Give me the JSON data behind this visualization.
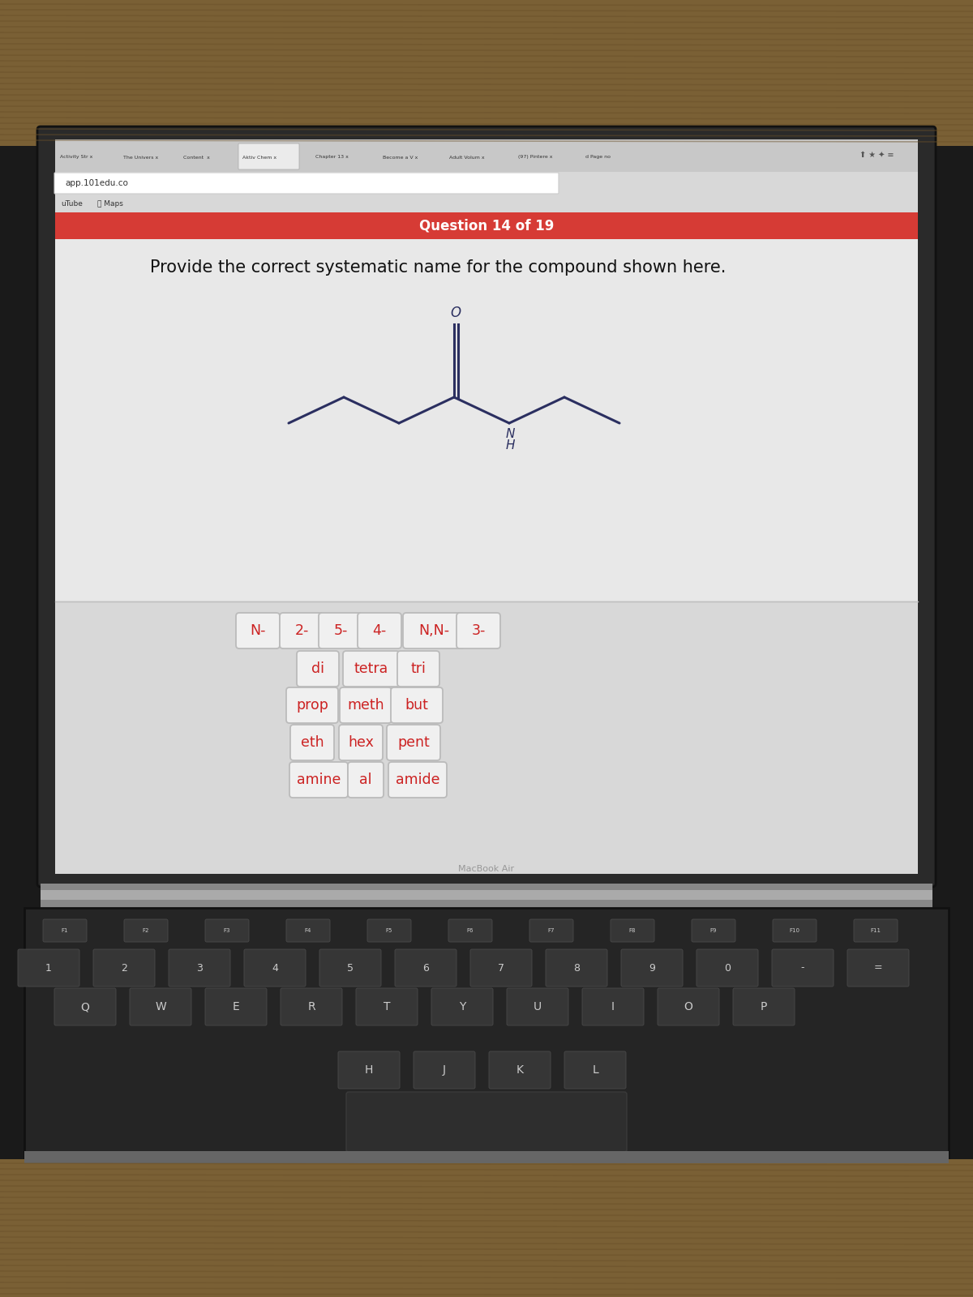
{
  "macbook_frame_color": "#2a2a2a",
  "screen_bg": "#e5e5e5",
  "browser_tabs_bg": "#c8c8c8",
  "active_tab_bg": "#ebebeb",
  "address_bar_bg": "#d8d8d8",
  "address_bar_box": "#ffffff",
  "bookmarks_bg": "#d8d8d8",
  "question_bar_color": "#d63b35",
  "question_text": "Question 14 of 19",
  "question_text_color": "#ffffff",
  "content_upper_bg": "#e8e8e8",
  "content_lower_bg": "#d8d8d8",
  "instruction_text": "Provide the correct systematic name for the compound shown here.",
  "instruction_color": "#111111",
  "tile_bg": "#f0f0f0",
  "tile_border": "#bbbbbb",
  "tile_text_color": "#cc2222",
  "row1_tiles": [
    "N-",
    "2-",
    "5-",
    "4-",
    "N,N-",
    "3-"
  ],
  "row2_tiles": [
    "di",
    "tetra",
    "tri"
  ],
  "row3_tiles": [
    "prop",
    "meth",
    "but"
  ],
  "row4_tiles": [
    "eth",
    "hex",
    "pent"
  ],
  "row5_tiles": [
    "amine",
    "al",
    "amide"
  ],
  "keyboard_bg": "#1e1e1e",
  "key_top_color": "#3a3a3a",
  "key_text_color": "#cccccc",
  "wood_top_color": "#7a6035",
  "wood_dark": "#6a5028",
  "macbook_bottom_color": "#888888",
  "bond_color": "#2b2f60",
  "macbook_air_text": "MacBook Air",
  "tab_labels": [
    "Activity Str x",
    "The Univers x",
    "Content  x",
    "Aktiv Chem x",
    "Chapter 13 x",
    "Become a V x",
    "Adult Volum x",
    "(97) Pintere x",
    "d Page no"
  ],
  "address_text": "app.101edu.co",
  "bookmarks_text": [
    "uTube",
    "Maps"
  ]
}
